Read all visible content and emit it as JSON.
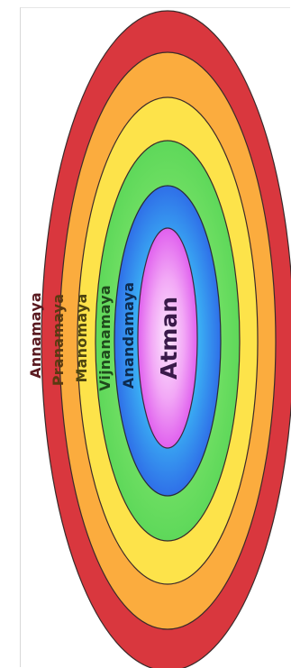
{
  "diagram": {
    "layers": [
      {
        "label": "Annamaya",
        "fill": "#d9373e",
        "text_color": "#5a1a20"
      },
      {
        "label": "Pranamaya",
        "fill": "#fbac3e",
        "text_color": "#5a3a10"
      },
      {
        "label": "Manomaya",
        "fill": "#fde34a",
        "text_color": "#4f4510"
      },
      {
        "label": "Vijnanamaya",
        "fill": "#7ee35c",
        "text_color": "#1f4a1c"
      },
      {
        "label": "Anandamaya",
        "fill": "#3a8cf0",
        "text_color": "#0d2a4f"
      }
    ],
    "core": {
      "label": "Atman",
      "fill_outer": "#e85ef0",
      "fill_inner": "#fbdffc",
      "text_color": "#3a1a4a"
    }
  }
}
